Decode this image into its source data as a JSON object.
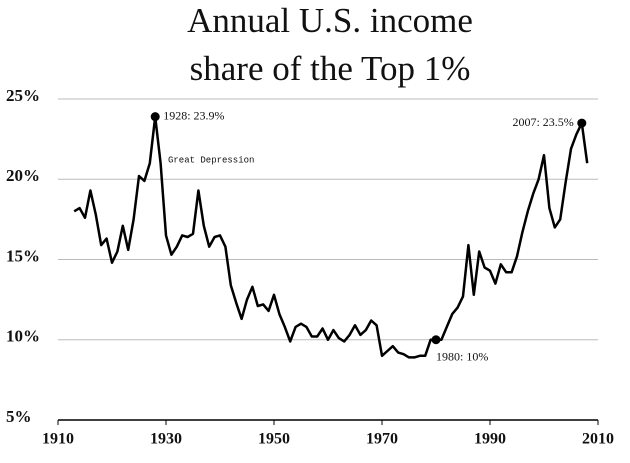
{
  "chart_data": {
    "type": "line",
    "title_lines": [
      "Annual U.S. income",
      "share of the Top 1%"
    ],
    "x": [
      1913,
      1914,
      1915,
      1916,
      1917,
      1918,
      1919,
      1920,
      1921,
      1922,
      1923,
      1924,
      1925,
      1926,
      1927,
      1928,
      1929,
      1930,
      1931,
      1932,
      1933,
      1934,
      1935,
      1936,
      1937,
      1938,
      1939,
      1940,
      1941,
      1942,
      1943,
      1944,
      1945,
      1946,
      1947,
      1948,
      1949,
      1950,
      1951,
      1952,
      1953,
      1954,
      1955,
      1956,
      1957,
      1958,
      1959,
      1960,
      1961,
      1962,
      1963,
      1964,
      1965,
      1966,
      1967,
      1968,
      1969,
      1970,
      1971,
      1972,
      1973,
      1974,
      1975,
      1976,
      1977,
      1978,
      1979,
      1980,
      1981,
      1982,
      1983,
      1984,
      1985,
      1986,
      1987,
      1988,
      1989,
      1990,
      1991,
      1992,
      1993,
      1994,
      1995,
      1996,
      1997,
      1998,
      1999,
      2000,
      2001,
      2002,
      2003,
      2004,
      2005,
      2006,
      2007,
      2008
    ],
    "values": [
      18.0,
      18.2,
      17.6,
      19.3,
      17.8,
      15.9,
      16.3,
      14.8,
      15.5,
      17.1,
      15.6,
      17.5,
      20.2,
      19.9,
      21.0,
      23.9,
      21.0,
      16.5,
      15.3,
      15.8,
      16.5,
      16.4,
      16.6,
      19.3,
      17.1,
      15.8,
      16.4,
      16.5,
      15.8,
      13.4,
      12.3,
      11.3,
      12.5,
      13.3,
      12.1,
      12.2,
      11.8,
      12.8,
      11.6,
      10.8,
      9.9,
      10.8,
      11.0,
      10.8,
      10.2,
      10.2,
      10.7,
      10.0,
      10.6,
      10.1,
      9.9,
      10.3,
      10.9,
      10.3,
      10.6,
      11.2,
      10.9,
      9.0,
      9.3,
      9.6,
      9.2,
      9.1,
      8.9,
      8.9,
      9.0,
      9.0,
      10.0,
      10.0,
      10.0,
      10.8,
      11.6,
      12.0,
      12.7,
      15.9,
      12.8,
      15.5,
      14.5,
      14.3,
      13.5,
      14.7,
      14.2,
      14.2,
      15.2,
      16.7,
      18.0,
      19.1,
      20.0,
      21.5,
      18.2,
      17.0,
      17.5,
      19.8,
      21.9,
      22.8,
      23.5,
      21.0
    ],
    "color": "#000000",
    "xlim": [
      1910,
      2010
    ],
    "xticks": [
      1910,
      1930,
      1950,
      1970,
      1990,
      2010
    ],
    "ylim": [
      5,
      25
    ],
    "yticks": [
      {
        "value": 5,
        "label": "5%"
      },
      {
        "value": 10,
        "label": "10%"
      },
      {
        "value": 15,
        "label": "15%"
      },
      {
        "value": 20,
        "label": "20%"
      },
      {
        "value": 25,
        "label": "25%"
      }
    ],
    "grid": true,
    "annotations": [
      {
        "text": "1928: 23.9%",
        "x": 1928,
        "y": 23.9
      },
      {
        "text": "2007: 23.5%",
        "x": 2007,
        "y": 23.5
      },
      {
        "text": "1980: 10%",
        "x": 1980,
        "y": 10
      },
      {
        "text": "Great Depression"
      }
    ]
  }
}
